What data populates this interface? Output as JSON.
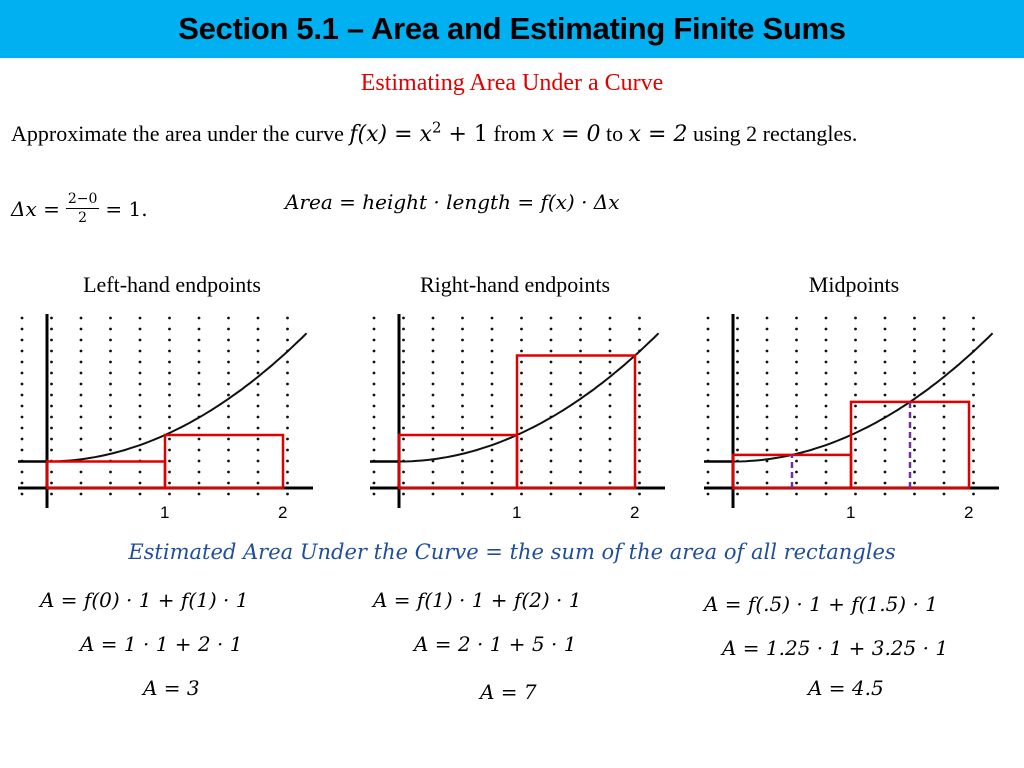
{
  "header": {
    "title": "Section 5.1 – Area and Estimating Finite Sums"
  },
  "subtitle": "Estimating Area Under a Curve",
  "problem": {
    "line_start": "Approximate the area under the curve ",
    "function_lhs": "f(x) = x",
    "function_exp": "2",
    "function_rhs": " + 1",
    "from_word": " from ",
    "from_val": "x = 0",
    "to_word": " to ",
    "to_val": "x = 2",
    "line_end": " using 2 rectangles."
  },
  "delta": {
    "lhs": "Δx =",
    "numerator": "2−0",
    "denominator": "2",
    "rhs": "= 1."
  },
  "area_formula": "Area = height  · length = f(x) · Δx",
  "colors": {
    "banner": "#00b0f0",
    "subtitle": "#e00000",
    "rect": "#e00000",
    "midline": "#7030a0",
    "summary": "#1f4e9c"
  },
  "columns": [
    {
      "heading": "Left-hand endpoints",
      "rects": [
        {
          "x0": 0,
          "x1": 1,
          "h": 1
        },
        {
          "x0": 1,
          "x1": 2,
          "h": 2
        }
      ],
      "midlines": [],
      "ticks": [
        "1",
        "2"
      ],
      "equations": [
        "A = f(0) · 1 + f(1) · 1",
        "A = 1 · 1 + 2 · 1",
        "A = 3"
      ]
    },
    {
      "heading": "Right-hand endpoints",
      "rects": [
        {
          "x0": 0,
          "x1": 1,
          "h": 2
        },
        {
          "x0": 1,
          "x1": 2,
          "h": 5
        }
      ],
      "midlines": [],
      "ticks": [
        "1",
        "2"
      ],
      "equations": [
        "A = f(1) · 1 + f(2) · 1",
        "A = 2 · 1 + 5 · 1",
        "A = 7"
      ]
    },
    {
      "heading": "Midpoints",
      "rects": [
        {
          "x0": 0,
          "x1": 1,
          "h": 1.25
        },
        {
          "x0": 1,
          "x1": 2,
          "h": 3.25
        }
      ],
      "midlines": [
        {
          "x": 0.5,
          "h": 1.25
        },
        {
          "x": 1.5,
          "h": 3.25
        }
      ],
      "ticks": [
        "1",
        "2"
      ],
      "equations": [
        "A = f(.5) · 1 + f(1.5) · 1",
        "A = 1.25 · 1 + 3.25 · 1",
        "A = 4.5"
      ]
    }
  ],
  "summary": "Estimated Area Under the Curve = the sum of the area of all rectangles"
}
